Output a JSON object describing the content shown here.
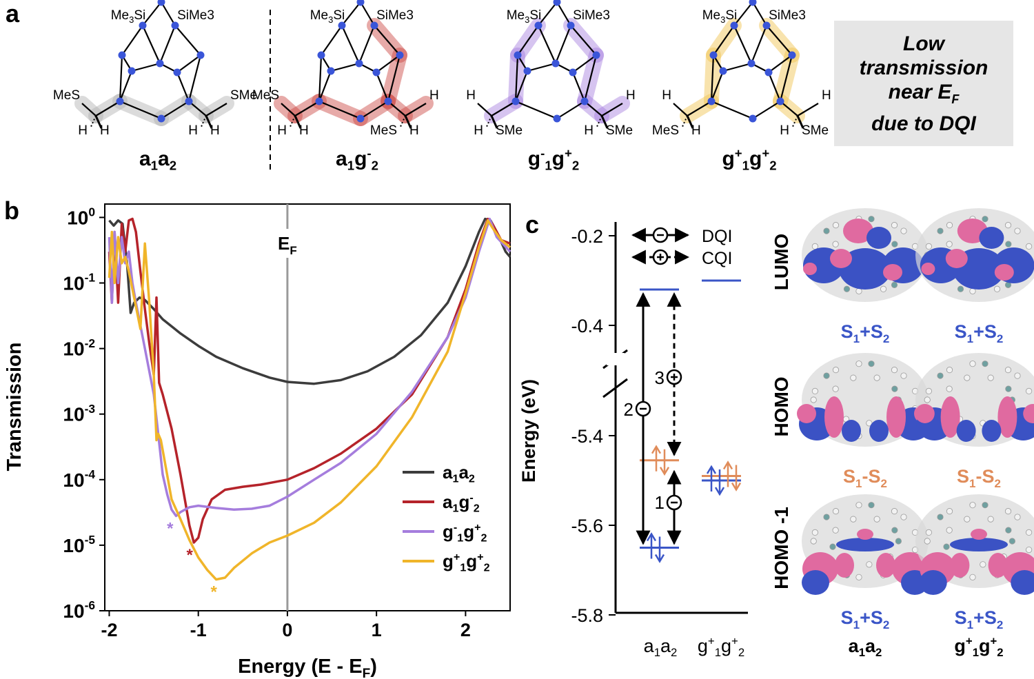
{
  "panels": {
    "a": "a",
    "b": "b",
    "c": "c"
  },
  "panel_a": {
    "molecules": [
      {
        "label": "a1a2",
        "top_left": "Me3Si",
        "top_right": "SiMe3",
        "left_group": "MeS",
        "right_group": "SMe",
        "bottom_labels": [
          "H",
          "H",
          "H",
          "H"
        ],
        "highlight": "#b0b0b0"
      },
      {
        "label": "a1g-2",
        "top_left": "Me3Si",
        "top_right": "SiMe3",
        "left_group": "MeS",
        "right_group": "H",
        "bottom_labels": [
          "H",
          "H",
          "MeS",
          "H"
        ],
        "highlight": "#c9433f"
      },
      {
        "label": "g-1g+2",
        "top_left": "Me3Si",
        "top_right": "SiMe3",
        "left_group": "H",
        "right_group": "H",
        "bottom_labels": [
          "H",
          "SMe",
          "H",
          "SMe"
        ],
        "highlight": "#a57ddd"
      },
      {
        "label": "g+1g+2",
        "top_left": "Me3Si",
        "top_right": "SiMe3",
        "left_group": "H",
        "right_group": "H",
        "bottom_labels": [
          "MeS",
          "H",
          "H",
          "SMe"
        ],
        "highlight": "#f0c24a"
      }
    ],
    "note_lines": [
      "Low",
      "transmission",
      "near EF",
      "due to DQI"
    ]
  },
  "chart_data": [
    {
      "type": "line",
      "ylabel": "Transmission",
      "xlabel": "Energy (E - EF)",
      "xlim": [
        -2.05,
        2.5
      ],
      "ylim": [
        1e-06,
        1.6
      ],
      "yscale": "log",
      "x_ticks": [
        -2,
        -1,
        0,
        1,
        2
      ],
      "y_ticks": [
        "10^0",
        "10^-1",
        "10^-2",
        "10^-3",
        "10^-4",
        "10^-5",
        "10^-6"
      ],
      "vline": {
        "x": 0,
        "label": "EF"
      },
      "legend_position": "bottom-right",
      "series": [
        {
          "name": "a1a2",
          "color": "#3c3c3c",
          "x": [
            -2.0,
            -1.95,
            -1.9,
            -1.85,
            -1.8,
            -1.76,
            -1.72,
            -1.66,
            -1.6,
            -1.5,
            -1.4,
            -1.2,
            -1.0,
            -0.8,
            -0.5,
            -0.2,
            0.0,
            0.3,
            0.6,
            0.9,
            1.2,
            1.5,
            1.8,
            2.0,
            2.15,
            2.22,
            2.28,
            2.35,
            2.45,
            2.5
          ],
          "y": [
            0.9,
            0.75,
            0.9,
            0.8,
            0.2,
            0.035,
            0.05,
            0.06,
            0.055,
            0.04,
            0.028,
            0.017,
            0.011,
            0.0075,
            0.005,
            0.0036,
            0.0031,
            0.0029,
            0.0033,
            0.0045,
            0.0075,
            0.016,
            0.05,
            0.18,
            0.6,
            0.95,
            0.9,
            0.6,
            0.3,
            0.25
          ]
        },
        {
          "name": "a1g-2",
          "color": "#b5232a",
          "x": [
            -2.0,
            -1.97,
            -1.94,
            -1.9,
            -1.86,
            -1.82,
            -1.78,
            -1.74,
            -1.7,
            -1.65,
            -1.6,
            -1.55,
            -1.5,
            -1.47,
            -1.44,
            -1.4,
            -1.3,
            -1.2,
            -1.1,
            -1.05,
            -1.0,
            -0.95,
            -0.85,
            -0.7,
            -0.5,
            -0.3,
            0.0,
            0.3,
            0.6,
            1.0,
            1.4,
            1.8,
            2.0,
            2.15,
            2.25,
            2.3,
            2.4,
            2.5
          ],
          "y": [
            0.3,
            0.05,
            0.6,
            0.05,
            0.8,
            0.3,
            0.9,
            0.95,
            0.6,
            0.15,
            0.04,
            0.012,
            0.004,
            0.06,
            0.003,
            0.002,
            0.0006,
            0.00012,
            2e-05,
            1.1e-05,
            1.3e-05,
            2.5e-05,
            5e-05,
            7e-05,
            7.8e-05,
            8.4e-05,
            0.0001,
            0.00015,
            0.00025,
            0.0006,
            0.002,
            0.015,
            0.08,
            0.4,
            0.95,
            0.8,
            0.45,
            0.4
          ]
        },
        {
          "name": "g-1g+2",
          "color": "#a57ddd",
          "x": [
            -2.0,
            -1.97,
            -1.94,
            -1.9,
            -1.86,
            -1.82,
            -1.78,
            -1.74,
            -1.7,
            -1.6,
            -1.5,
            -1.45,
            -1.4,
            -1.35,
            -1.3,
            -1.25,
            -1.2,
            -1.1,
            -1.0,
            -0.8,
            -0.6,
            -0.4,
            -0.2,
            0.0,
            0.3,
            0.6,
            1.0,
            1.4,
            1.8,
            2.0,
            2.15,
            2.27,
            2.35,
            2.5
          ],
          "y": [
            0.5,
            0.05,
            0.6,
            0.1,
            0.5,
            0.2,
            0.3,
            0.1,
            0.05,
            0.01,
            0.002,
            0.0005,
            0.00012,
            6e-05,
            3.5e-05,
            2.8e-05,
            3.2e-05,
            3.8e-05,
            4e-05,
            3.7e-05,
            3.5e-05,
            3.6e-05,
            4e-05,
            5.5e-05,
            0.0001,
            0.00018,
            0.0005,
            0.0022,
            0.015,
            0.06,
            0.3,
            0.95,
            0.5,
            0.3
          ]
        },
        {
          "name": "g+1g+2",
          "color": "#f0b52a",
          "x": [
            -2.0,
            -1.97,
            -1.94,
            -1.9,
            -1.86,
            -1.82,
            -1.78,
            -1.72,
            -1.65,
            -1.6,
            -1.55,
            -1.5,
            -1.47,
            -1.45,
            -1.42,
            -1.38,
            -1.3,
            -1.2,
            -1.1,
            -1.0,
            -0.9,
            -0.8,
            -0.7,
            -0.6,
            -0.4,
            -0.2,
            0.0,
            0.3,
            0.6,
            1.0,
            1.4,
            1.8,
            2.0,
            2.15,
            2.25,
            2.3,
            2.4,
            2.5
          ],
          "y": [
            0.12,
            0.6,
            0.1,
            0.5,
            0.2,
            0.25,
            0.15,
            0.06,
            0.02,
            0.4,
            0.05,
            0.004,
            0.0004,
            0.0005,
            0.0004,
            0.0002,
            5e-05,
            2.5e-05,
            1.2e-05,
            6.5e-06,
            4.2e-06,
            3e-06,
            3.2e-06,
            4.5e-06,
            7.5e-06,
            1.1e-05,
            1.4e-05,
            2.2e-05,
            4.5e-05,
            0.00016,
            0.0009,
            0.009,
            0.07,
            0.35,
            0.9,
            0.7,
            0.45,
            0.35
          ]
        }
      ],
      "minima_markers": [
        {
          "series": "g-1g+2",
          "x": -1.27,
          "y": 2.8e-05
        },
        {
          "series": "a1g-2",
          "x": -1.05,
          "y": 1.1e-05
        },
        {
          "series": "g+1g+2",
          "x": -0.78,
          "y": 3e-06
        }
      ],
      "marker_symbol": "*"
    },
    {
      "type": "energy-level-diagram",
      "ylabel": "Energy (eV)",
      "y_ticks_upper": [
        -0.2,
        -0.4
      ],
      "y_ticks_lower": [
        -5.4,
        -5.6,
        -5.8
      ],
      "categories": [
        "a1a2",
        "g+1g+2"
      ],
      "levels": {
        "a1a2": {
          "LUMO": -0.32,
          "HOMO": -5.455,
          "HOMO-1": -5.65
        },
        "g+1g+2": {
          "LUMO": -0.3,
          "HOMO": -5.49,
          "HOMO-1": -5.5
        }
      },
      "level_colors": {
        "LUMO": "#3a55c7",
        "HOMO": "#e08c5a",
        "HOMO-1": "#3a55c7"
      },
      "legend": [
        {
          "label": "DQI",
          "symbol": "−",
          "style": "solid"
        },
        {
          "label": "CQI",
          "symbol": "+",
          "style": "dashed"
        }
      ],
      "pathways": [
        {
          "label": "1",
          "sign": "−",
          "from": "HOMO-1",
          "to": "HOMO",
          "style": "solid"
        },
        {
          "label": "2",
          "sign": "−",
          "from": "HOMO-1",
          "to": "LUMO",
          "style": "solid"
        },
        {
          "label": "3",
          "sign": "+",
          "from": "HOMO",
          "to": "LUMO",
          "style": "dashed"
        }
      ]
    }
  ],
  "orbitals": {
    "row_labels": [
      "LUMO",
      "HOMO",
      "HOMO -1"
    ],
    "column_labels": [
      "a1a2",
      "g+1g+2"
    ],
    "combos": [
      "S1+S2",
      "S1-S2",
      "S1+S2"
    ],
    "combo_colors": [
      "#3a55c7",
      "#e08c5a",
      "#3a55c7"
    ],
    "lobe_colors": {
      "positive": "#3b52c4",
      "negative": "#e06aa0"
    }
  }
}
